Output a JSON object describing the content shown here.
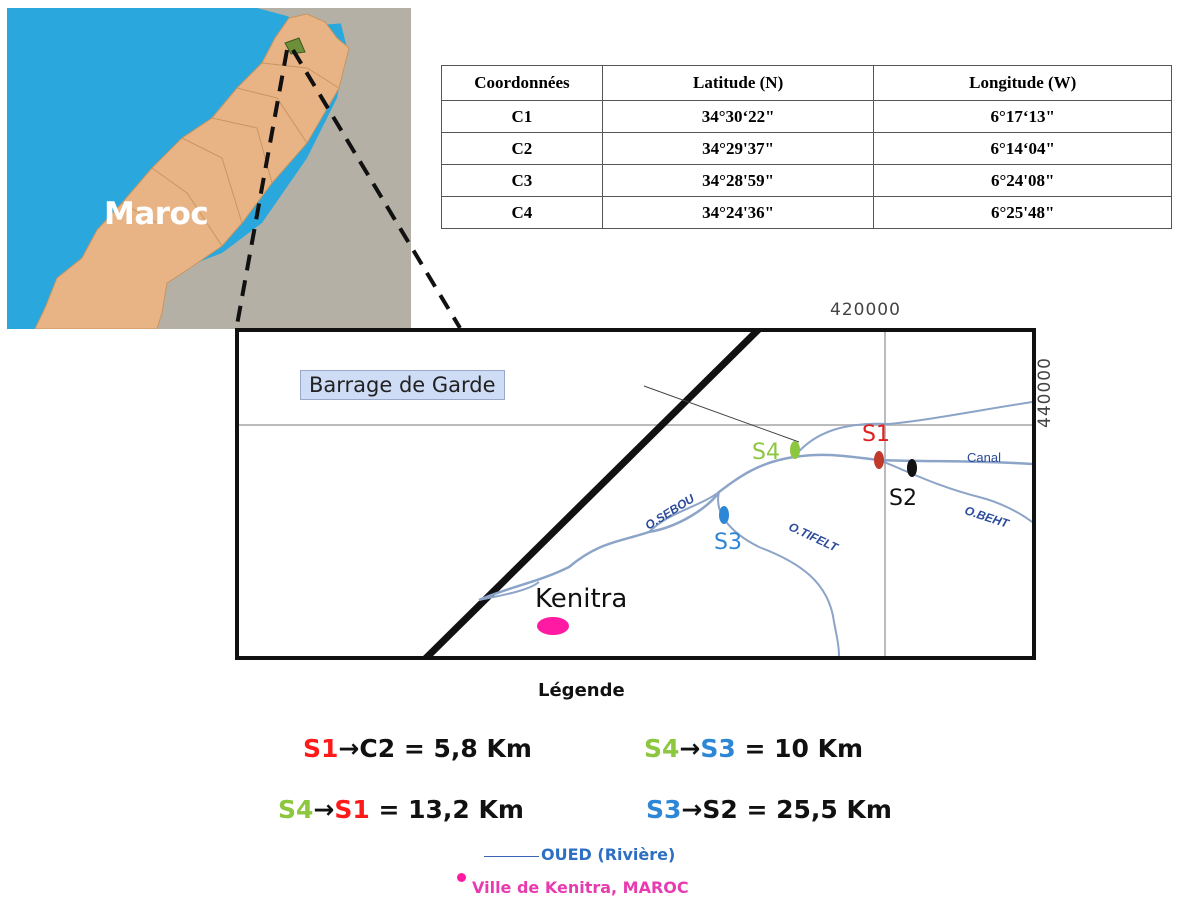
{
  "inset_map": {
    "country_label": "Maroc",
    "colors": {
      "sea": "#2aa7dd",
      "country": "#e8b486",
      "neighbour": "#b5b0a6",
      "study_area": "#6e8f3a"
    }
  },
  "coordinates_table": {
    "headers": [
      "Coordonnées",
      "Latitude (N)",
      "Longitude (W)"
    ],
    "rows": [
      [
        "C1",
        "34°30‘22\"",
        "6°17‘13\""
      ],
      [
        "C2",
        "34°29'37\"",
        "6°14‘04\""
      ],
      [
        "C3",
        "34°28'59\"",
        "6°24'08\""
      ],
      [
        "C4",
        "34°24'36\"",
        "6°25'48\""
      ]
    ]
  },
  "detail_map": {
    "grid_x_label": "420000",
    "grid_y_label": "440000",
    "barrage_label": "Barrage de Garde",
    "sites": [
      {
        "label": "S1",
        "color": "#e01f1f"
      },
      {
        "label": "S2",
        "color": "#111111"
      },
      {
        "label": "S3",
        "color": "#2e86d6"
      },
      {
        "label": "S4",
        "color": "#8dc63f"
      }
    ],
    "rivers": [
      "O.SEBOU",
      "O.TIFELT",
      "O.BEHT"
    ],
    "canal_label": "Canal",
    "city_label": "Kenitra"
  },
  "legend": {
    "title": "Légende",
    "distances": [
      {
        "from": "S1",
        "to": "C2",
        "value": "= 5,8 Km"
      },
      {
        "from": "S4",
        "to": "S3",
        "value": "= 10 Km"
      },
      {
        "from": "S4",
        "to": "S1",
        "value": "= 13,2 Km"
      },
      {
        "from": "S3",
        "to": "S2",
        "value": "= 25,5 Km"
      }
    ],
    "arrow": "→",
    "oued_label": "OUED (Rivière)",
    "city_label": "Ville de Kenitra, MAROC"
  }
}
